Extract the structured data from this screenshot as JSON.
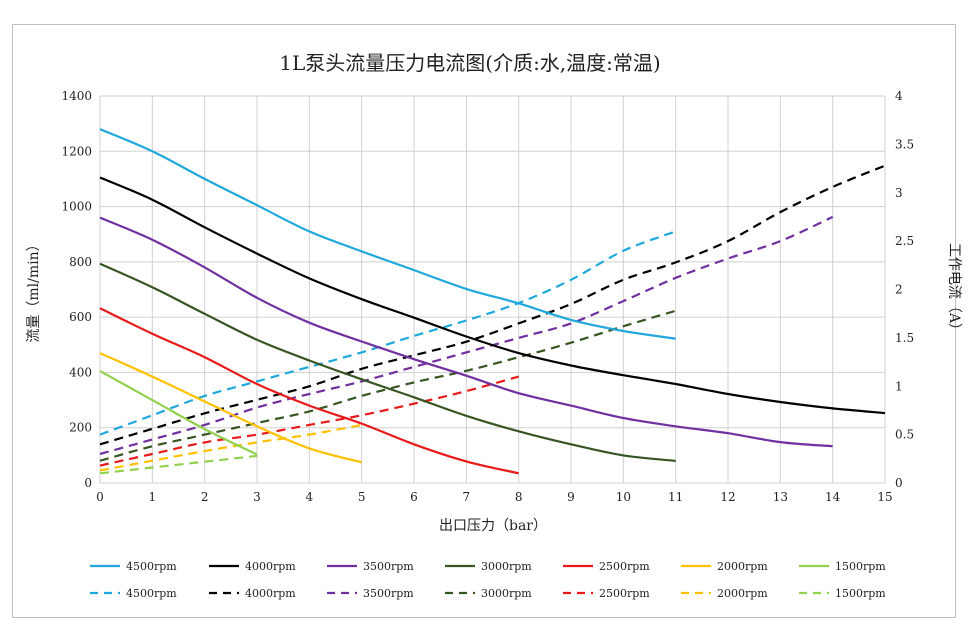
{
  "chart_data": {
    "type": "line",
    "title": "1L泵头流量压力电流图(介质:水,温度:常温)",
    "xlabel": "出口压力（bar）",
    "ylabel": "流量（ml/min）",
    "y2label": "工作电流（A）",
    "xlim": [
      0,
      15
    ],
    "ylim": [
      0,
      1400
    ],
    "y2lim": [
      0,
      4
    ],
    "xticks": [
      0,
      1,
      2,
      3,
      4,
      5,
      6,
      7,
      8,
      9,
      10,
      11,
      12,
      13,
      14,
      15
    ],
    "yticks": [
      0,
      200,
      400,
      600,
      800,
      1000,
      1200,
      1400
    ],
    "y2ticks": [
      0,
      0.5,
      1,
      1.5,
      2,
      2.5,
      3,
      3.5,
      4
    ],
    "grid": true,
    "legend_position": "bottom",
    "flow_series": [
      {
        "name": "4500rpm",
        "color": "#1fa8dc",
        "x": [
          0,
          1,
          2,
          3,
          4,
          5,
          6,
          7,
          8,
          9,
          10,
          11
        ],
        "y": [
          1280,
          1200,
          1100,
          1005,
          910,
          838,
          770,
          702,
          650,
          590,
          550,
          522
        ]
      },
      {
        "name": "4000rpm",
        "color": "#000000",
        "x": [
          0,
          1,
          2,
          3,
          4,
          5,
          6,
          7,
          8,
          9,
          10,
          11,
          12,
          13,
          14,
          15
        ],
        "y": [
          1105,
          1025,
          925,
          830,
          740,
          665,
          598,
          530,
          470,
          425,
          390,
          358,
          322,
          293,
          270,
          253
        ]
      },
      {
        "name": "3500rpm",
        "color": "#7030a0",
        "x": [
          0,
          1,
          2,
          3,
          4,
          5,
          6,
          7,
          8,
          9,
          10,
          11,
          12,
          13,
          14
        ],
        "y": [
          960,
          880,
          780,
          670,
          580,
          512,
          448,
          388,
          325,
          280,
          235,
          205,
          180,
          148,
          133
        ]
      },
      {
        "name": "3000rpm",
        "color": "#375623",
        "x": [
          0,
          1,
          2,
          3,
          4,
          5,
          6,
          7,
          8,
          9,
          10,
          11
        ],
        "y": [
          793,
          708,
          612,
          518,
          443,
          375,
          310,
          243,
          187,
          140,
          100,
          80
        ]
      },
      {
        "name": "2500rpm",
        "color": "#e81a1a",
        "x": [
          0,
          1,
          2,
          3,
          4,
          5,
          6,
          7,
          8
        ],
        "y": [
          632,
          540,
          455,
          358,
          280,
          215,
          140,
          78,
          35
        ]
      },
      {
        "name": "2000rpm",
        "color": "#ffc000",
        "x": [
          0,
          1,
          2,
          3,
          4,
          5
        ],
        "y": [
          470,
          385,
          295,
          205,
          125,
          75
        ]
      },
      {
        "name": "1500rpm",
        "color": "#92d050",
        "x": [
          0,
          1,
          2,
          3
        ],
        "y": [
          405,
          300,
          195,
          103
        ]
      }
    ],
    "current_series": [
      {
        "name": "4500rpm",
        "color": "#1fa8dc",
        "x": [
          0,
          1,
          2,
          3,
          4,
          5,
          6,
          7,
          8,
          9,
          10,
          11
        ],
        "y": [
          0.5,
          0.7,
          0.9,
          1.05,
          1.2,
          1.35,
          1.52,
          1.68,
          1.86,
          2.1,
          2.4,
          2.6
        ]
      },
      {
        "name": "4000rpm",
        "color": "#000000",
        "x": [
          0,
          1,
          2,
          3,
          4,
          5,
          6,
          7,
          8,
          9,
          10,
          11,
          12,
          13,
          14,
          15
        ],
        "y": [
          0.4,
          0.56,
          0.72,
          0.86,
          1.0,
          1.18,
          1.32,
          1.46,
          1.65,
          1.85,
          2.1,
          2.28,
          2.5,
          2.8,
          3.06,
          3.28
        ]
      },
      {
        "name": "3500rpm",
        "color": "#7030a0",
        "x": [
          0,
          1,
          2,
          3,
          4,
          5,
          6,
          7,
          8,
          9,
          10,
          11,
          12,
          13,
          14
        ],
        "y": [
          0.3,
          0.45,
          0.6,
          0.78,
          0.92,
          1.05,
          1.2,
          1.35,
          1.5,
          1.65,
          1.88,
          2.12,
          2.32,
          2.5,
          2.75
        ]
      },
      {
        "name": "3000rpm",
        "color": "#375623",
        "x": [
          0,
          1,
          2,
          3,
          4,
          5,
          6,
          7,
          8,
          9,
          10,
          11
        ],
        "y": [
          0.23,
          0.38,
          0.5,
          0.62,
          0.74,
          0.9,
          1.04,
          1.16,
          1.3,
          1.45,
          1.62,
          1.78
        ]
      },
      {
        "name": "2500rpm",
        "color": "#e81a1a",
        "x": [
          0,
          1,
          2,
          3,
          4,
          5,
          6,
          7,
          8
        ],
        "y": [
          0.18,
          0.3,
          0.42,
          0.5,
          0.6,
          0.7,
          0.82,
          0.95,
          1.1
        ]
      },
      {
        "name": "2000rpm",
        "color": "#ffc000",
        "x": [
          0,
          1,
          2,
          3,
          4,
          5
        ],
        "y": [
          0.13,
          0.23,
          0.33,
          0.42,
          0.5,
          0.6
        ]
      },
      {
        "name": "1500rpm",
        "color": "#92d050",
        "x": [
          0,
          1,
          2,
          3
        ],
        "y": [
          0.1,
          0.16,
          0.22,
          0.28
        ]
      }
    ],
    "legend_solid": [
      "4500rpm",
      "4000rpm",
      "3500rpm",
      "3000rpm",
      "2500rpm",
      "2000rpm",
      "1500rpm"
    ],
    "legend_dashed": [
      "4500rpm",
      "4000rpm",
      "3500rpm",
      "3000rpm",
      "2500rpm",
      "2000rpm",
      "1500rpm"
    ]
  }
}
